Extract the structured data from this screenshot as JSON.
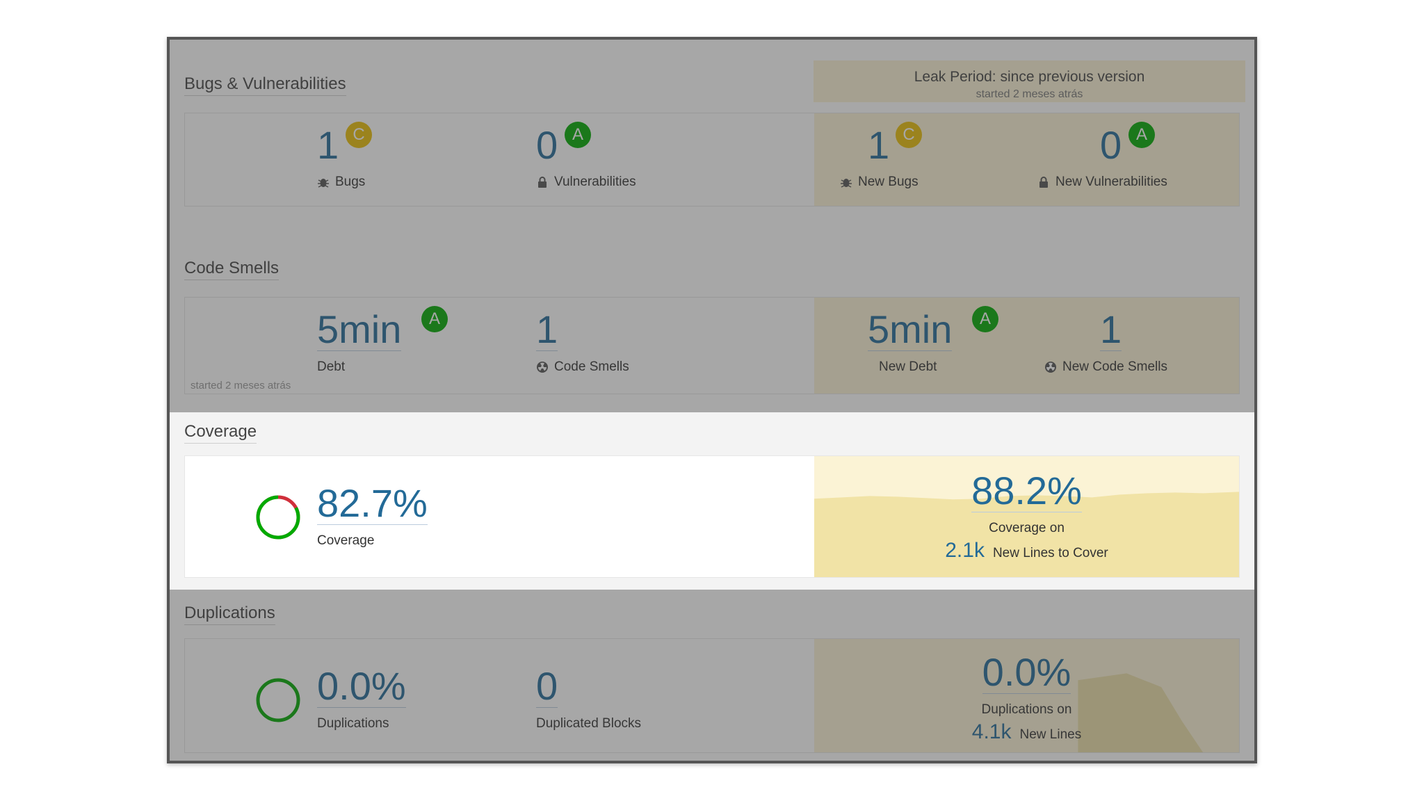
{
  "leak": {
    "title": "Leak Period: since previous version",
    "started": "started 2 meses atrás"
  },
  "bugs_section": {
    "title": "Bugs & Vulnerabilities",
    "bugs": {
      "value": "1",
      "rating": "C",
      "label": "Bugs"
    },
    "vulnerabilities": {
      "value": "0",
      "rating": "A",
      "label": "Vulnerabilities"
    },
    "new_bugs": {
      "value": "1",
      "rating": "C",
      "label": "New Bugs"
    },
    "new_vulnerabilities": {
      "value": "0",
      "rating": "A",
      "label": "New Vulnerabilities"
    }
  },
  "smells_section": {
    "title": "Code Smells",
    "debt": {
      "value": "5min",
      "rating": "A",
      "label": "Debt"
    },
    "code_smells": {
      "value": "1",
      "label": "Code Smells"
    },
    "new_debt": {
      "value": "5min",
      "rating": "A",
      "label": "New Debt"
    },
    "new_code_smells": {
      "value": "1",
      "label": "New Code Smells"
    },
    "started_note": "started 2 meses atrás"
  },
  "coverage_section": {
    "title": "Coverage",
    "coverage": {
      "value": "82.7%",
      "label": "Coverage"
    },
    "new_coverage": {
      "value": "88.2%",
      "label": "Coverage on",
      "lines_value": "2.1k",
      "lines_label": "New Lines to Cover"
    }
  },
  "duplications_section": {
    "title": "Duplications",
    "duplications": {
      "value": "0.0%",
      "label": "Duplications"
    },
    "blocks": {
      "value": "0",
      "label": "Duplicated Blocks"
    },
    "new_duplications": {
      "value": "0.0%",
      "label": "Duplications on",
      "lines_value": "4.1k",
      "lines_label": "New Lines"
    }
  },
  "colors": {
    "rating_a": "#00aa00",
    "rating_c": "#eabe06",
    "value_blue": "#236a97",
    "leak_bg": "#fbf3d5"
  }
}
